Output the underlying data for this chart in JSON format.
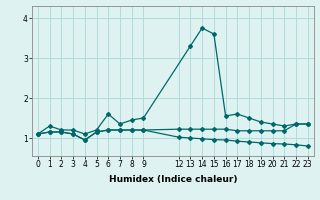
{
  "title": "",
  "xlabel": "Humidex (Indice chaleur)",
  "ylabel": "",
  "bg_color": "#dff2f2",
  "grid_color": "#aad8d8",
  "line_color": "#006868",
  "xlim": [
    -0.5,
    23.5
  ],
  "ylim": [
    0.55,
    4.3
  ],
  "yticks": [
    1,
    2,
    3,
    4
  ],
  "xtick_positions": [
    0,
    1,
    2,
    3,
    4,
    5,
    6,
    7,
    8,
    9,
    12,
    13,
    14,
    15,
    16,
    17,
    18,
    19,
    20,
    21,
    22,
    23
  ],
  "xtick_labels": [
    "0",
    "1",
    "2",
    "3",
    "4",
    "5",
    "6",
    "7",
    "8",
    "9",
    "12",
    "13",
    "14",
    "15",
    "16",
    "17",
    "18",
    "19",
    "20",
    "21",
    "22",
    "23"
  ],
  "s1_x": [
    0,
    1,
    2,
    3,
    4,
    5,
    6,
    7,
    8,
    9,
    13,
    14,
    15,
    16,
    17,
    18,
    19,
    20,
    21,
    22,
    23
  ],
  "s1_y": [
    1.1,
    1.3,
    1.2,
    1.2,
    1.1,
    1.2,
    1.6,
    1.35,
    1.45,
    1.5,
    3.3,
    3.75,
    3.6,
    1.55,
    1.6,
    1.5,
    1.4,
    1.35,
    1.3,
    1.35,
    1.35
  ],
  "s2_x": [
    0,
    1,
    2,
    3,
    4,
    5,
    6,
    7,
    8,
    9,
    12,
    13,
    14,
    15,
    16,
    17,
    18,
    19,
    20,
    21,
    22,
    23
  ],
  "s2_y": [
    1.1,
    1.15,
    1.15,
    1.1,
    0.95,
    1.15,
    1.2,
    1.2,
    1.2,
    1.2,
    1.22,
    1.22,
    1.22,
    1.22,
    1.22,
    1.18,
    1.18,
    1.18,
    1.18,
    1.18,
    1.35,
    1.35
  ],
  "s3_x": [
    0,
    1,
    2,
    3,
    4,
    5,
    6,
    7,
    8,
    9,
    12,
    13,
    14,
    15,
    16,
    17,
    18,
    19,
    20,
    21,
    22,
    23
  ],
  "s3_y": [
    1.1,
    1.15,
    1.15,
    1.1,
    0.95,
    1.15,
    1.2,
    1.2,
    1.2,
    1.2,
    1.02,
    1.0,
    0.98,
    0.96,
    0.95,
    0.92,
    0.9,
    0.88,
    0.86,
    0.85,
    0.83,
    0.8
  ],
  "marker": "D",
  "markersize": 2.0,
  "linewidth": 0.9,
  "tick_fontsize": 5.5,
  "xlabel_fontsize": 6.5
}
